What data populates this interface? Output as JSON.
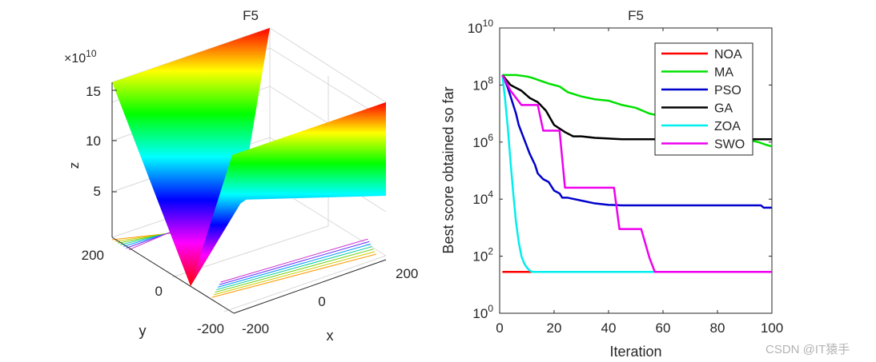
{
  "chart_data": [
    {
      "type": "surface",
      "title": "F5",
      "xlabel": "x",
      "ylabel": "y",
      "zlabel": "z",
      "z_exponent_label": "×10",
      "z_exponent": "10",
      "x_ticks": [
        "-200",
        "0",
        "200"
      ],
      "y_ticks": [
        "200",
        "0",
        "-200"
      ],
      "z_ticks": [
        "15",
        "10",
        "5"
      ],
      "xlim": [
        -200,
        200
      ],
      "ylim": [
        -200,
        200
      ],
      "zlim": [
        0,
        160000000000.0
      ],
      "colormap": [
        "#ff0000",
        "#ffff00",
        "#00ff00",
        "#00ffff",
        "#0000ff",
        "#ff00ff",
        "#ff0000"
      ]
    },
    {
      "type": "line",
      "title": "F5",
      "xlabel": "Iteration",
      "ylabel": "Best score obtained so far",
      "xlim": [
        0,
        100
      ],
      "ylim_log10": [
        0,
        10
      ],
      "x_ticks": [
        "0",
        "20",
        "40",
        "60",
        "80",
        "100"
      ],
      "y_ticks": [
        {
          "base": "10",
          "exp": "0",
          "value_log10": 0
        },
        {
          "base": "10",
          "exp": "2",
          "value_log10": 2
        },
        {
          "base": "10",
          "exp": "4",
          "value_log10": 4
        },
        {
          "base": "10",
          "exp": "6",
          "value_log10": 6
        },
        {
          "base": "10",
          "exp": "8",
          "value_log10": 8
        },
        {
          "base": "10",
          "exp": "10",
          "value_log10": 10
        }
      ],
      "legend_position": "top-right",
      "series": [
        {
          "name": "NOA",
          "color": "#ff0000",
          "x": [
            1,
            10,
            14
          ],
          "log10_y": [
            1.45,
            1.45,
            1.45
          ]
        },
        {
          "name": "MA",
          "color": "#00e000",
          "x": [
            1,
            3,
            6,
            10,
            12,
            15,
            18,
            22,
            25,
            30,
            35,
            40,
            45,
            50,
            55,
            60,
            65,
            70,
            75,
            80,
            85,
            90,
            95,
            98,
            100
          ],
          "log10_y": [
            8.35,
            8.35,
            8.35,
            8.3,
            8.25,
            8.15,
            8.05,
            7.95,
            7.75,
            7.6,
            7.5,
            7.45,
            7.3,
            7.2,
            7.0,
            6.9,
            6.8,
            6.6,
            6.45,
            6.3,
            6.2,
            6.1,
            6.0,
            5.9,
            5.85
          ]
        },
        {
          "name": "PSO",
          "color": "#0000cc",
          "x": [
            1,
            2,
            3,
            4,
            5,
            6,
            7,
            9,
            11,
            13,
            14,
            16,
            18,
            20,
            22,
            23,
            25,
            30,
            35,
            40,
            45,
            70,
            90,
            96,
            97,
            100
          ],
          "log10_y": [
            8.35,
            8.15,
            7.9,
            7.6,
            7.3,
            7.0,
            6.6,
            6.1,
            5.6,
            5.2,
            4.9,
            4.7,
            4.6,
            4.3,
            4.2,
            4.05,
            4.05,
            3.95,
            3.85,
            3.8,
            3.78,
            3.78,
            3.78,
            3.78,
            3.7,
            3.7
          ]
        },
        {
          "name": "GA",
          "color": "#000000",
          "x": [
            1,
            4,
            8,
            11,
            14,
            17,
            20,
            24,
            27,
            30,
            35,
            45,
            55,
            70,
            100
          ],
          "log10_y": [
            8.35,
            8.0,
            7.8,
            7.55,
            7.4,
            7.1,
            6.6,
            6.35,
            6.2,
            6.2,
            6.15,
            6.1,
            6.1,
            6.1,
            6.1
          ]
        },
        {
          "name": "ZOA",
          "color": "#00eeee",
          "x": [
            1,
            2,
            3,
            4,
            5,
            6,
            7,
            8,
            9,
            10,
            11,
            12,
            14,
            100
          ],
          "log10_y": [
            8.35,
            7.5,
            6.5,
            5.3,
            4.2,
            3.2,
            2.5,
            2.0,
            1.75,
            1.6,
            1.5,
            1.45,
            1.45,
            1.45
          ]
        },
        {
          "name": "SWO",
          "color": "#ee00ee",
          "x": [
            1,
            4,
            8,
            12,
            14,
            16,
            19,
            22,
            24,
            30,
            37,
            42,
            44,
            48,
            52,
            55,
            57,
            60,
            100
          ],
          "log10_y": [
            8.35,
            7.8,
            7.3,
            7.3,
            7.3,
            6.4,
            6.4,
            6.4,
            4.4,
            4.4,
            4.4,
            4.4,
            2.95,
            2.95,
            2.95,
            1.95,
            1.45,
            1.45,
            1.45
          ]
        }
      ]
    }
  ],
  "watermark": "CSDN @IT猿手"
}
